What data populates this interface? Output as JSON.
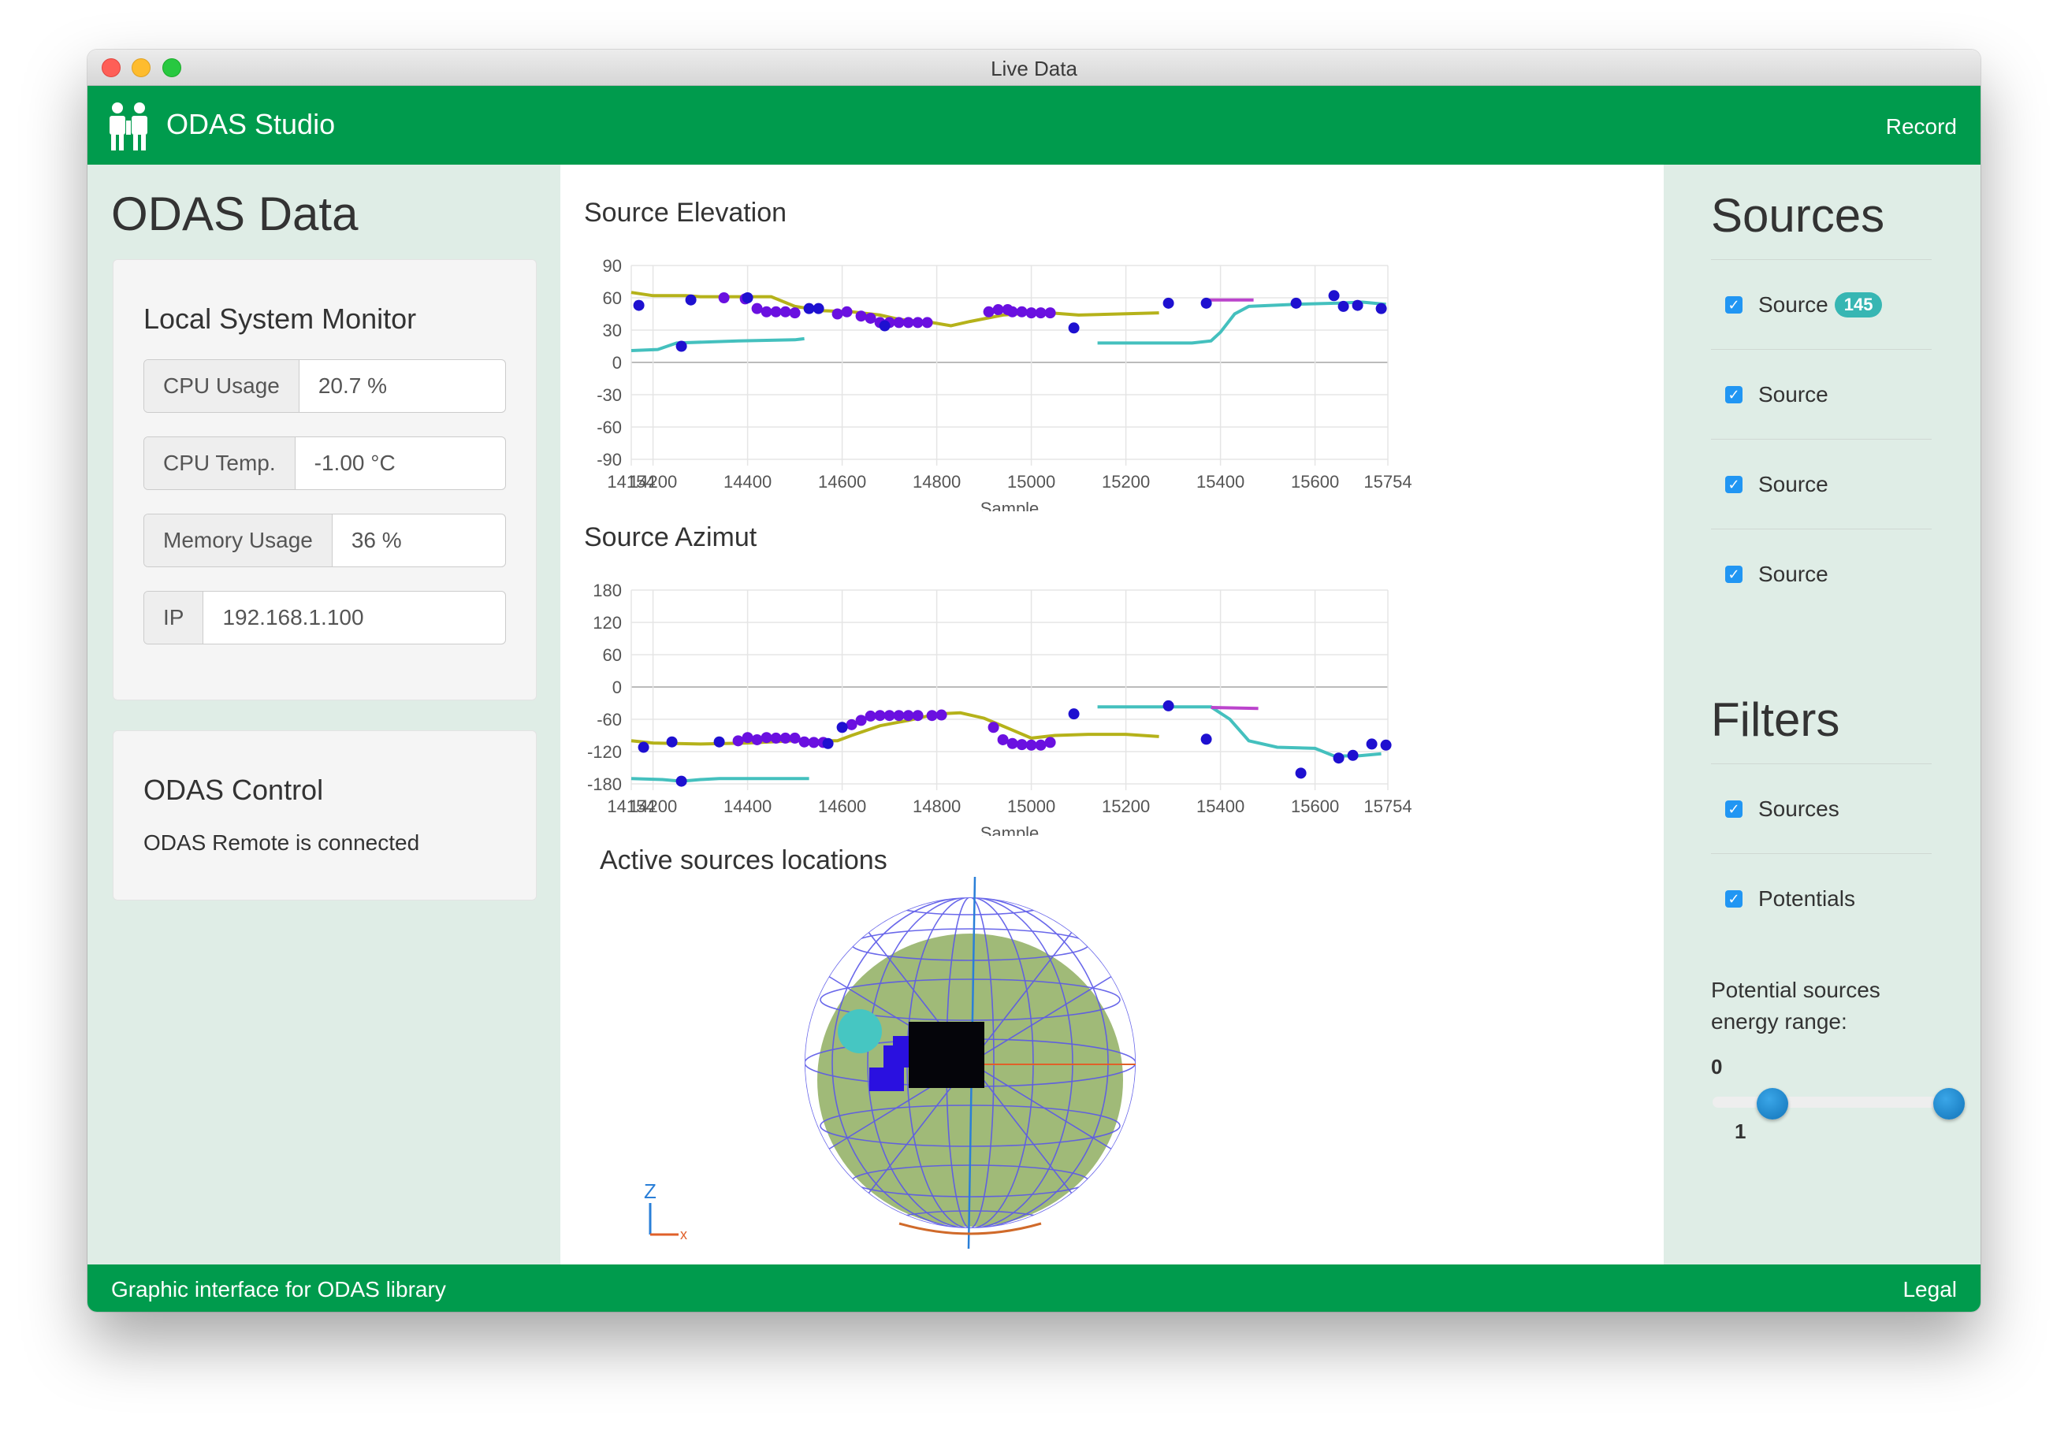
{
  "window": {
    "title": "Live Data"
  },
  "appbar": {
    "brand": "ODAS Studio",
    "record": "Record"
  },
  "left": {
    "title": "ODAS Data",
    "monitor": {
      "title": "Local System Monitor",
      "fields": [
        {
          "label": "CPU Usage",
          "value": "20.7 %"
        },
        {
          "label": "CPU Temp.",
          "value": "-1.00 °C"
        },
        {
          "label": "Memory Usage",
          "value": "36 %"
        },
        {
          "label": "IP",
          "value": "192.168.1.100"
        }
      ]
    },
    "control": {
      "title": "ODAS Control",
      "status": "ODAS Remote is connected"
    }
  },
  "center": {
    "elevation_title": "Source Elevation",
    "azimut_title": "Source Azimut",
    "locations_title": "Active sources locations",
    "axis_label_z": "Z",
    "axis_label_x": "x"
  },
  "right": {
    "sources_title": "Sources",
    "sources": [
      {
        "label": "Source",
        "badge": "145",
        "checked": true
      },
      {
        "label": "Source",
        "checked": true
      },
      {
        "label": "Source",
        "checked": true
      },
      {
        "label": "Source",
        "checked": true
      }
    ],
    "filters_title": "Filters",
    "filters": [
      {
        "label": "Sources",
        "checked": true
      },
      {
        "label": "Potentials",
        "checked": true
      }
    ],
    "energy_label": "Potential sources energy range:",
    "range_min_label": "0",
    "range_max_label": "1",
    "range": [
      0,
      1
    ]
  },
  "footer": {
    "text": "Graphic interface for ODAS library",
    "legal": "Legal"
  },
  "colors": {
    "green": "#009b4d",
    "panel": "#dfede6",
    "series_yellow": "#b5b21a",
    "series_cyan": "#44c0be",
    "series_magenta": "#bb44cc",
    "potential_purple": "#6a10e0",
    "potential_blue": "#1e10d0"
  },
  "chart_data": [
    {
      "type": "scatter",
      "title": "Source Elevation",
      "xlabel": "Sample",
      "ylabel": "",
      "xlim": [
        14154,
        15754
      ],
      "ylim": [
        -90,
        90
      ],
      "x_ticks": [
        "14154",
        "14200",
        "14400",
        "14600",
        "14800",
        "15000",
        "15200",
        "15400",
        "15600",
        "15754"
      ],
      "y_ticks": [
        "90",
        "60",
        "30",
        "0",
        "-30",
        "-60",
        "-90"
      ],
      "series": [
        {
          "kind": "line",
          "color": "#b5b21a",
          "points": [
            [
              14154,
              65
            ],
            [
              14200,
              62
            ],
            [
              14270,
              62
            ],
            [
              14300,
              61
            ],
            [
              14400,
              61
            ],
            [
              14450,
              61
            ],
            [
              14500,
              52
            ],
            [
              14560,
              48
            ],
            [
              14620,
              47
            ],
            [
              14680,
              44
            ],
            [
              14720,
              40
            ],
            [
              14790,
              37
            ],
            [
              14830,
              34
            ],
            [
              14870,
              38
            ],
            [
              14940,
              44
            ],
            [
              15000,
              46
            ],
            [
              15040,
              46
            ],
            [
              15100,
              44
            ],
            [
              15270,
              46
            ]
          ]
        },
        {
          "kind": "line",
          "color": "#44c0be",
          "points": [
            [
              14154,
              11
            ],
            [
              14210,
              12
            ],
            [
              14230,
              15
            ],
            [
              14250,
              18
            ],
            [
              14380,
              20
            ],
            [
              14500,
              21
            ],
            [
              14520,
              22
            ]
          ]
        },
        {
          "kind": "line",
          "color": "#44c0be",
          "points": [
            [
              15140,
              18
            ],
            [
              15340,
              18
            ],
            [
              15380,
              20
            ],
            [
              15400,
              28
            ],
            [
              15430,
              45
            ],
            [
              15460,
              52
            ],
            [
              15560,
              54
            ],
            [
              15650,
              55
            ],
            [
              15700,
              56
            ],
            [
              15750,
              54
            ]
          ]
        },
        {
          "kind": "line",
          "color": "#bb44cc",
          "points": [
            [
              15370,
              58
            ],
            [
              15470,
              58
            ]
          ]
        },
        {
          "kind": "points",
          "color": "#6a10e0",
          "points": [
            [
              14350,
              60
            ],
            [
              14395,
              59
            ],
            [
              14420,
              50
            ],
            [
              14440,
              47
            ],
            [
              14460,
              47
            ],
            [
              14480,
              47
            ],
            [
              14500,
              46
            ],
            [
              14590,
              45
            ],
            [
              14610,
              47
            ],
            [
              14640,
              43
            ],
            [
              14660,
              41
            ],
            [
              14680,
              37
            ],
            [
              14700,
              37
            ],
            [
              14720,
              37
            ],
            [
              14740,
              37
            ],
            [
              14760,
              37
            ],
            [
              14780,
              37
            ],
            [
              14910,
              47
            ],
            [
              14930,
              49
            ],
            [
              14950,
              49
            ],
            [
              14960,
              47
            ],
            [
              14980,
              47
            ],
            [
              15000,
              46
            ],
            [
              15020,
              46
            ],
            [
              15040,
              46
            ]
          ]
        },
        {
          "kind": "points",
          "color": "#1e10d0",
          "points": [
            [
              14170,
              53
            ],
            [
              14260,
              15
            ],
            [
              14280,
              58
            ],
            [
              14400,
              60
            ],
            [
              14530,
              50
            ],
            [
              14550,
              50
            ],
            [
              14690,
              34
            ],
            [
              15090,
              32
            ],
            [
              15290,
              55
            ],
            [
              15370,
              55
            ],
            [
              15560,
              55
            ],
            [
              15640,
              62
            ],
            [
              15660,
              52
            ],
            [
              15690,
              53
            ],
            [
              15740,
              50
            ]
          ]
        }
      ]
    },
    {
      "type": "scatter",
      "title": "Source Azimut",
      "xlabel": "Sample",
      "ylabel": "",
      "xlim": [
        14154,
        15754
      ],
      "ylim": [
        -180,
        180
      ],
      "x_ticks": [
        "14154",
        "14200",
        "14400",
        "14600",
        "14800",
        "15000",
        "15200",
        "15400",
        "15600",
        "15754"
      ],
      "y_ticks": [
        "180",
        "120",
        "60",
        "0",
        "-60",
        "-120",
        "-180"
      ],
      "series": [
        {
          "kind": "line",
          "color": "#b5b21a",
          "points": [
            [
              14154,
              -100
            ],
            [
              14200,
              -104
            ],
            [
              14300,
              -106
            ],
            [
              14400,
              -104
            ],
            [
              14500,
              -100
            ],
            [
              14590,
              -100
            ],
            [
              14620,
              -90
            ],
            [
              14680,
              -72
            ],
            [
              14740,
              -62
            ],
            [
              14800,
              -50
            ],
            [
              14850,
              -48
            ],
            [
              14900,
              -58
            ],
            [
              14960,
              -80
            ],
            [
              15000,
              -95
            ],
            [
              15050,
              -90
            ],
            [
              15120,
              -88
            ],
            [
              15200,
              -88
            ],
            [
              15270,
              -92
            ]
          ]
        },
        {
          "kind": "line",
          "color": "#44c0be",
          "points": [
            [
              14154,
              -170
            ],
            [
              14220,
              -172
            ],
            [
              14260,
              -175
            ],
            [
              14300,
              -172
            ],
            [
              14340,
              -170
            ],
            [
              14530,
              -170
            ]
          ]
        },
        {
          "kind": "line",
          "color": "#44c0be",
          "points": [
            [
              15140,
              -37
            ],
            [
              15380,
              -37
            ],
            [
              15420,
              -60
            ],
            [
              15460,
              -100
            ],
            [
              15520,
              -112
            ],
            [
              15600,
              -114
            ],
            [
              15640,
              -128
            ],
            [
              15690,
              -128
            ],
            [
              15740,
              -124
            ]
          ]
        },
        {
          "kind": "line",
          "color": "#bb44cc",
          "points": [
            [
              15380,
              -38
            ],
            [
              15480,
              -40
            ]
          ]
        },
        {
          "kind": "points",
          "color": "#6a10e0",
          "points": [
            [
              14380,
              -100
            ],
            [
              14400,
              -94
            ],
            [
              14420,
              -98
            ],
            [
              14440,
              -94
            ],
            [
              14460,
              -95
            ],
            [
              14480,
              -95
            ],
            [
              14500,
              -95
            ],
            [
              14520,
              -102
            ],
            [
              14540,
              -103
            ],
            [
              14560,
              -103
            ],
            [
              14620,
              -70
            ],
            [
              14640,
              -62
            ],
            [
              14660,
              -54
            ],
            [
              14680,
              -53
            ],
            [
              14700,
              -53
            ],
            [
              14720,
              -53
            ],
            [
              14740,
              -53
            ],
            [
              14760,
              -53
            ],
            [
              14790,
              -53
            ],
            [
              14810,
              -52
            ],
            [
              14920,
              -75
            ],
            [
              14940,
              -98
            ],
            [
              14960,
              -105
            ],
            [
              14980,
              -107
            ],
            [
              15000,
              -108
            ],
            [
              15020,
              -108
            ],
            [
              15040,
              -103
            ]
          ]
        },
        {
          "kind": "points",
          "color": "#1e10d0",
          "points": [
            [
              14180,
              -112
            ],
            [
              14240,
              -102
            ],
            [
              14260,
              -175
            ],
            [
              14340,
              -102
            ],
            [
              14570,
              -105
            ],
            [
              14600,
              -75
            ],
            [
              15090,
              -50
            ],
            [
              15290,
              -35
            ],
            [
              15370,
              -97
            ],
            [
              15570,
              -160
            ],
            [
              15650,
              -132
            ],
            [
              15680,
              -127
            ],
            [
              15720,
              -106
            ],
            [
              15750,
              -108
            ]
          ]
        }
      ]
    }
  ]
}
